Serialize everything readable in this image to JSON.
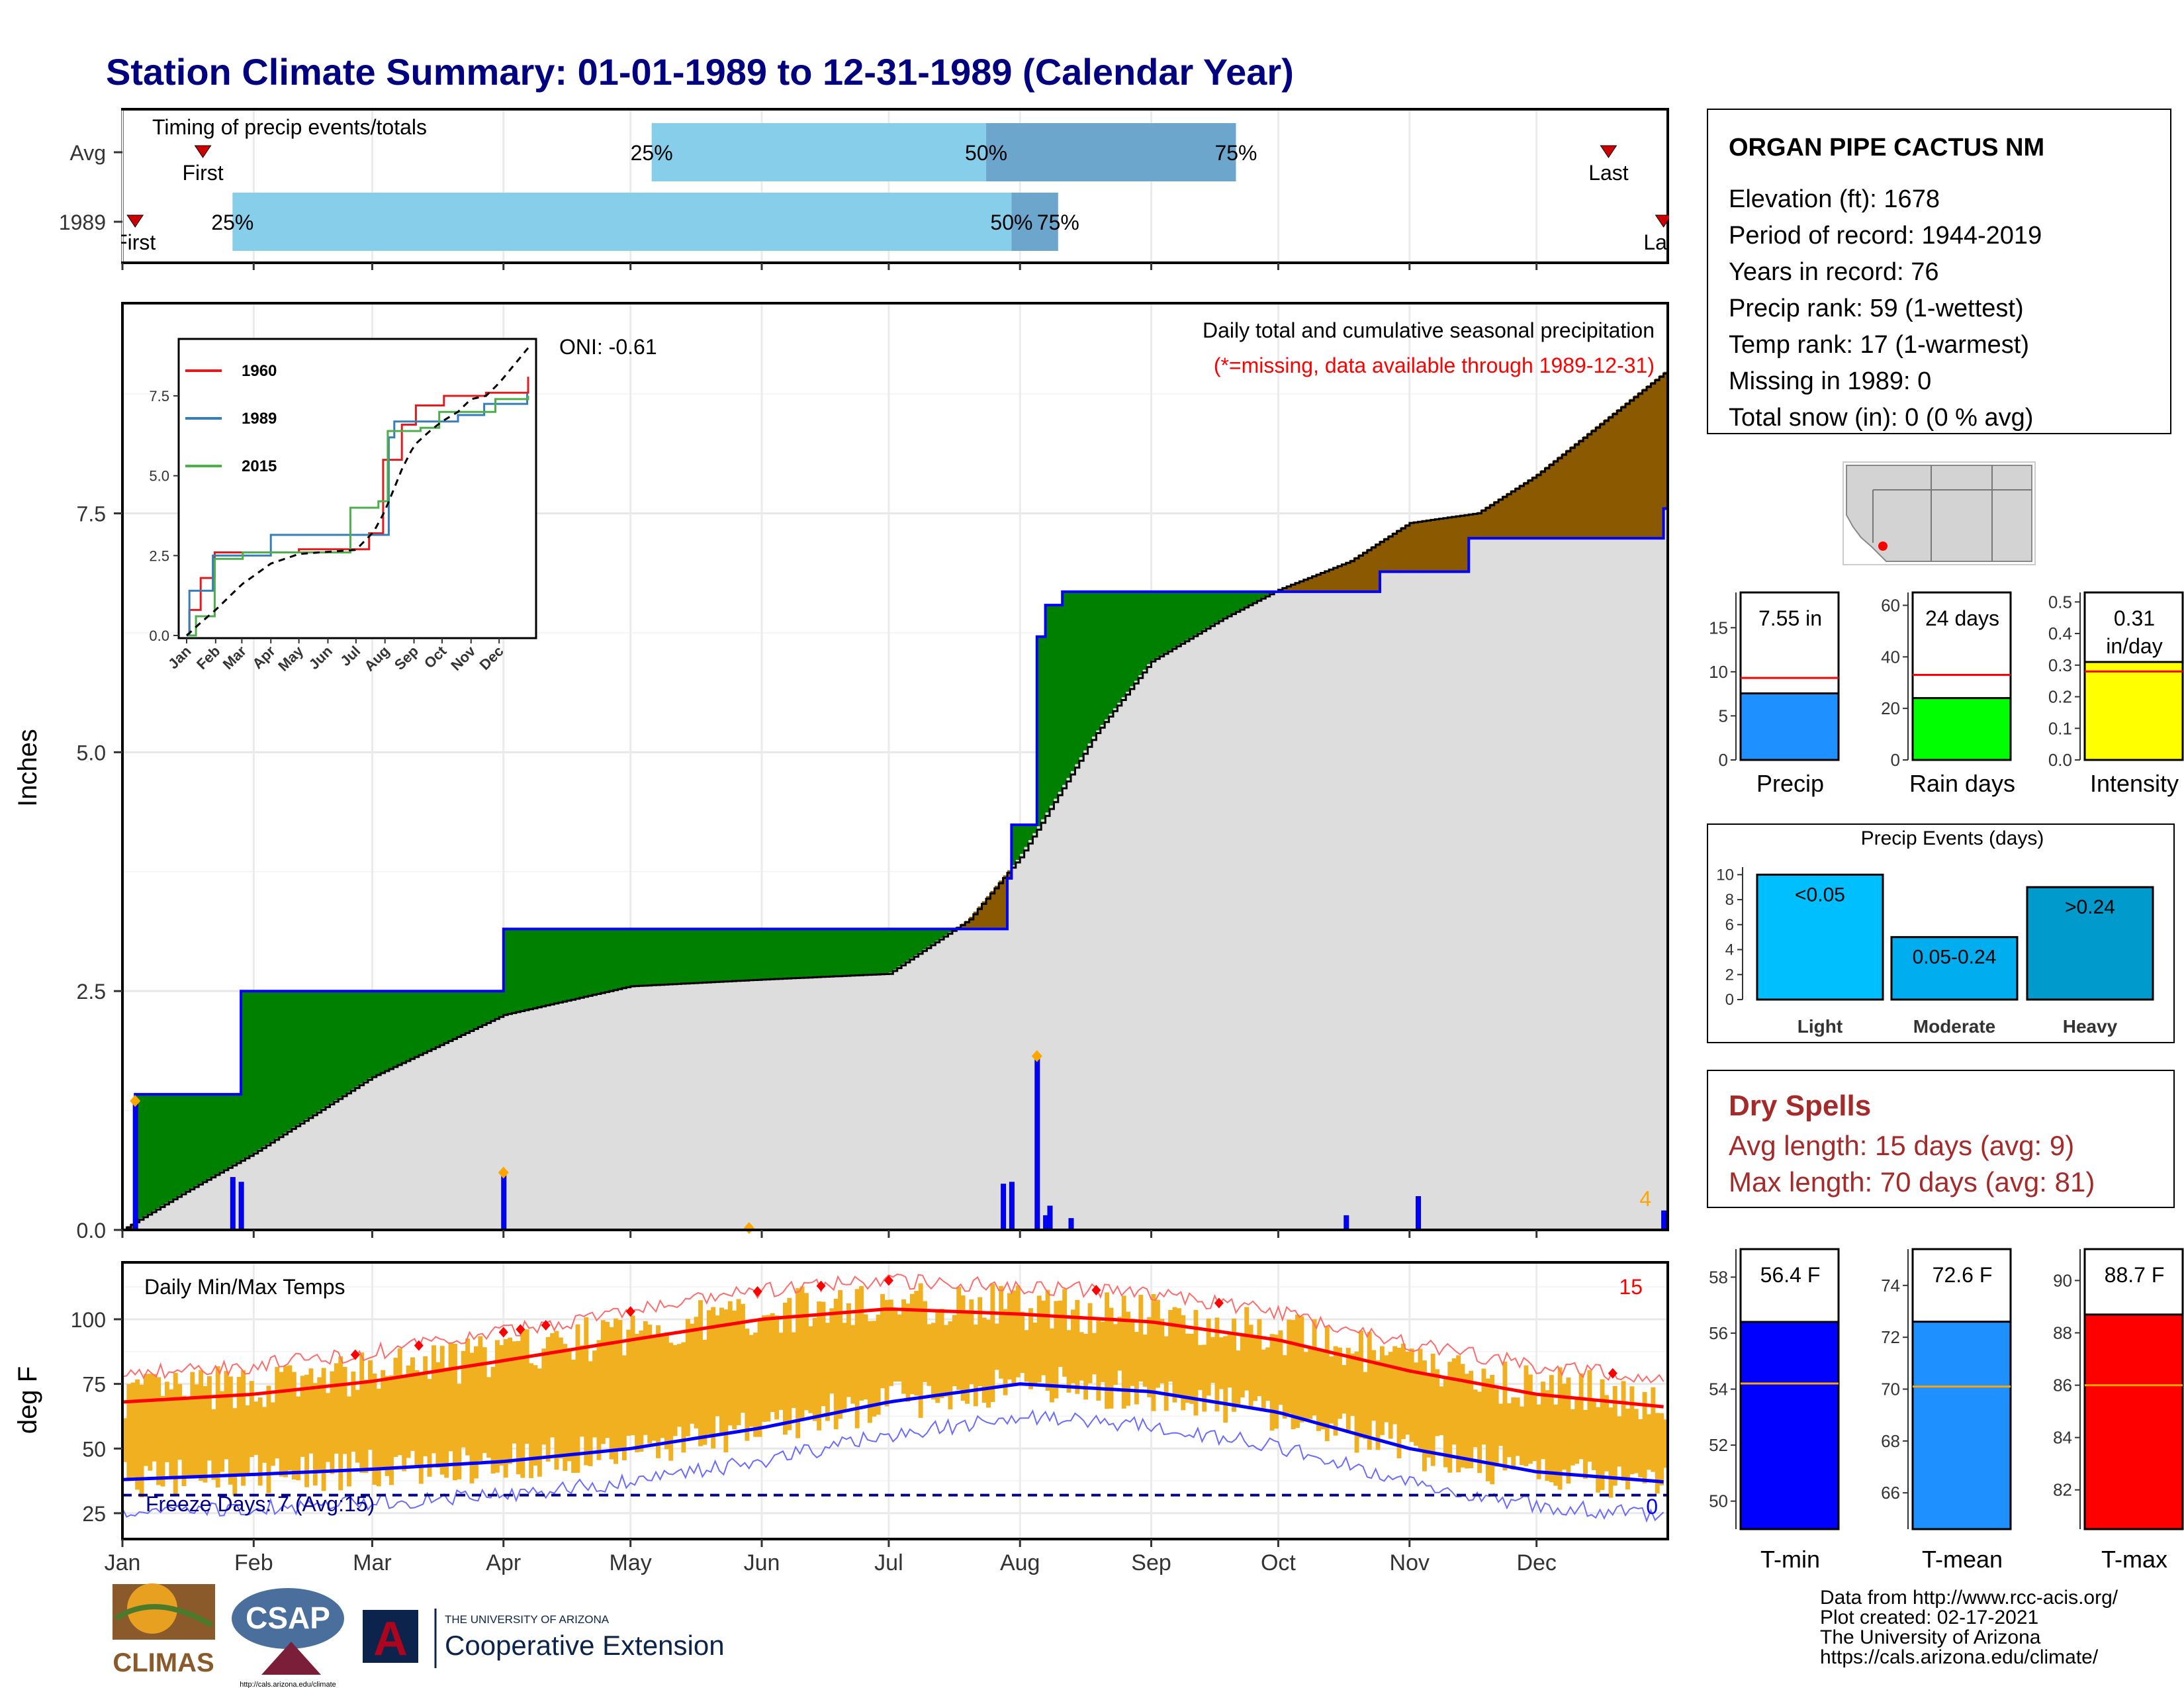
{
  "title": "Station Climate Summary: 01-01-1989 to 12-31-1989 (Calendar Year)",
  "months": [
    "Jan",
    "Feb",
    "Mar",
    "Apr",
    "May",
    "Jun",
    "Jul",
    "Aug",
    "Sep",
    "Oct",
    "Nov",
    "Dec"
  ],
  "timing": {
    "label": "Timing of precip events/totals",
    "rows": [
      {
        "name": "Avg",
        "first": "First",
        "last": "Last",
        "p25_label": "25%",
        "p50_label": "50%",
        "p75_label": "75%",
        "first_doy": 19,
        "p25_doy": 125,
        "p50_doy": 204,
        "p75_doy": 263,
        "last_doy": 351
      },
      {
        "name": "1989",
        "first": "First",
        "last": "Last",
        "p25_label": "25%",
        "p50_label": "50%",
        "p75_label": "75%",
        "first_doy": 3,
        "p25_doy": 26,
        "p50_doy": 210,
        "p75_doy": 221,
        "last_doy": 364
      }
    ],
    "colors": {
      "light": "#87CEEB",
      "dark": "#6CA6CD",
      "marker": "#CC0000"
    }
  },
  "precip_panel": {
    "ylabel": "Inches",
    "yticks": [
      "0.0",
      "2.5",
      "5.0",
      "7.5"
    ],
    "annotation1": "Daily total and cumulative seasonal precipitation",
    "annotation2": "(*=missing, data available through 1989-12-31)",
    "oni": "ONI: -0.61",
    "count_label": "4",
    "colors": {
      "above": "#008000",
      "below": "#8B5A00",
      "normal": "#DDDDDD",
      "line": "#0000FF",
      "avgline": "#000000"
    }
  },
  "inset": {
    "yticks": [
      "0.0",
      "2.5",
      "5.0",
      "7.5"
    ],
    "months": [
      "Jan",
      "Feb",
      "Mar",
      "Apr",
      "May",
      "Jun",
      "Jul",
      "Aug",
      "Sep",
      "Oct",
      "Nov",
      "Dec"
    ],
    "legend": [
      {
        "name": "1960",
        "color": "#E41A1C"
      },
      {
        "name": "1989",
        "color": "#377EB8"
      },
      {
        "name": "2015",
        "color": "#4DAF4A"
      }
    ]
  },
  "temp_panel": {
    "ylabel": "deg F",
    "label": "Daily Min/Max Temps",
    "yticks": [
      "25",
      "50",
      "75",
      "100"
    ],
    "freeze_label": "Freeze Days: 7 (Avg:15)",
    "hot_count": "15",
    "cold_count": "0"
  },
  "station": {
    "name": "ORGAN PIPE CACTUS NM",
    "lines": [
      "Elevation (ft): 1678",
      "Period of record: 1944-2019",
      "Years in record: 76",
      "Precip rank: 59 (1-wettest)",
      "Temp rank: 17 (1-warmest)",
      "Missing in 1989: 0",
      "Total snow (in): 0 (0 % avg)"
    ]
  },
  "mini_bars": [
    {
      "name": "Precip",
      "value_label": "7.55 in",
      "value": 7.55,
      "normal": 9.3,
      "ymax": 19,
      "ticks": [
        "0",
        "5",
        "10",
        "15"
      ],
      "tickvals": [
        0,
        5,
        10,
        15
      ],
      "color": "#1E90FF"
    },
    {
      "name": "Rain days",
      "value_label": "24 days",
      "value": 24,
      "normal": 33,
      "ymax": 65,
      "ticks": [
        "0",
        "20",
        "40",
        "60"
      ],
      "tickvals": [
        0,
        20,
        40,
        60
      ],
      "color": "#00FF00"
    },
    {
      "name": "Intensity",
      "value_label_1": "0.31",
      "value_label_2": "in/day",
      "value": 0.31,
      "normal": 0.28,
      "ymax": 0.53,
      "ticks": [
        "0.0",
        "0.1",
        "0.2",
        "0.3",
        "0.4",
        "0.5"
      ],
      "tickvals": [
        0,
        0.1,
        0.2,
        0.3,
        0.4,
        0.5
      ],
      "color": "#FFFF00"
    }
  ],
  "events": {
    "title": "Precip Events (days)",
    "ticks": [
      "0",
      "2",
      "4",
      "6",
      "8",
      "10"
    ],
    "bars": [
      {
        "name": "Light",
        "label": "<0.05",
        "value": 10,
        "color": "#00BFFF"
      },
      {
        "name": "Moderate",
        "label": "0.05-0.24",
        "value": 5,
        "color": "#00AEEF"
      },
      {
        "name": "Heavy",
        "label": ">0.24",
        "value": 9,
        "color": "#009ACD"
      }
    ]
  },
  "dry_spells": {
    "title": "Dry Spells",
    "line1": "Avg length: 15 days (avg: 9)",
    "line2": "Max length: 70 days (avg: 81)"
  },
  "temp_bars": [
    {
      "name": "T-min",
      "value_label": "56.4 F",
      "value": 56.4,
      "normal": 54.2,
      "ymin": 49,
      "ymax": 59,
      "ticks": [
        "50",
        "52",
        "54",
        "56",
        "58"
      ],
      "tickvals": [
        50,
        52,
        54,
        56,
        58
      ],
      "color": "#0000FF"
    },
    {
      "name": "T-mean",
      "value_label": "72.6 F",
      "value": 72.6,
      "normal": 70.1,
      "ymin": 64.6,
      "ymax": 75.4,
      "ticks": [
        "66",
        "68",
        "70",
        "72",
        "74"
      ],
      "tickvals": [
        66,
        68,
        70,
        72,
        74
      ],
      "color": "#1E90FF"
    },
    {
      "name": "T-max",
      "value_label": "88.7 F",
      "value": 88.7,
      "normal": 86.0,
      "ymin": 80.5,
      "ymax": 91.2,
      "ticks": [
        "82",
        "84",
        "86",
        "88",
        "90"
      ],
      "tickvals": [
        82,
        84,
        86,
        88,
        90
      ],
      "color": "#FF0000"
    }
  ],
  "footer": {
    "lines": [
      "Data from http://www.rcc-acis.org/",
      "Plot created: 02-17-2021",
      "The University of Arizona",
      "https://cals.arizona.edu/climate/"
    ],
    "logo_climas": "CLIMAS",
    "logo_csap": "CSAP",
    "logo_csap_url": "http://cals.arizona.edu/climate",
    "ua_line1": "THE UNIVERSITY OF ARIZONA",
    "ua_line2": "Cooperative Extension"
  },
  "chart_data": [
    {
      "type": "area",
      "title": "Daily total and cumulative seasonal precipitation",
      "ylabel": "Inches",
      "ylim": [
        0,
        9.7
      ],
      "cumulative_1989_steps": [
        [
          0,
          0
        ],
        [
          3,
          1.42
        ],
        [
          26,
          1.42
        ],
        [
          28,
          2.5
        ],
        [
          90,
          2.5
        ],
        [
          90,
          3.15
        ],
        [
          208,
          3.15
        ],
        [
          209,
          3.68
        ],
        [
          210,
          4.24
        ],
        [
          215,
          4.24
        ],
        [
          216,
          6.21
        ],
        [
          218,
          6.54
        ],
        [
          221,
          6.54
        ],
        [
          222,
          6.68
        ],
        [
          290,
          6.68
        ],
        [
          297,
          6.89
        ],
        [
          316,
          6.89
        ],
        [
          318,
          7.24
        ],
        [
          362,
          7.24
        ],
        [
          364,
          7.55
        ]
      ],
      "cumulative_avg": [
        [
          0,
          0
        ],
        [
          15,
          0.4
        ],
        [
          31,
          0.8
        ],
        [
          59,
          1.6
        ],
        [
          90,
          2.25
        ],
        [
          120,
          2.55
        ],
        [
          151,
          2.62
        ],
        [
          181,
          2.68
        ],
        [
          200,
          3.25
        ],
        [
          212,
          3.9
        ],
        [
          230,
          5.2
        ],
        [
          243,
          5.95
        ],
        [
          260,
          6.4
        ],
        [
          273,
          6.7
        ],
        [
          290,
          7.0
        ],
        [
          304,
          7.4
        ],
        [
          320,
          7.5
        ],
        [
          334,
          7.9
        ],
        [
          365,
          9.0
        ]
      ],
      "daily_1989": [
        {
          "doy": 3,
          "in": 1.35
        },
        {
          "doy": 26,
          "in": 0.55
        },
        {
          "doy": 28,
          "in": 0.5
        },
        {
          "doy": 90,
          "in": 0.6
        },
        {
          "doy": 148,
          "in": 0.02
        },
        {
          "doy": 208,
          "in": 0.48
        },
        {
          "doy": 210,
          "in": 0.5
        },
        {
          "doy": 216,
          "in": 1.82
        },
        {
          "doy": 218,
          "in": 0.15
        },
        {
          "doy": 219,
          "in": 0.25
        },
        {
          "doy": 224,
          "in": 0.12
        },
        {
          "doy": 289,
          "in": 0.15
        },
        {
          "doy": 306,
          "in": 0.35
        },
        {
          "doy": 364,
          "in": 0.2
        }
      ]
    },
    {
      "type": "line",
      "title": "Daily Min/Max Temps",
      "ylabel": "deg F",
      "ylim": [
        15,
        122
      ],
      "normal_max": [
        [
          0,
          68
        ],
        [
          31,
          71
        ],
        [
          59,
          76
        ],
        [
          90,
          84
        ],
        [
          120,
          92
        ],
        [
          151,
          100
        ],
        [
          181,
          104
        ],
        [
          212,
          102
        ],
        [
          243,
          99
        ],
        [
          273,
          92
        ],
        [
          304,
          80
        ],
        [
          334,
          71
        ],
        [
          365,
          66
        ]
      ],
      "normal_min": [
        [
          0,
          38
        ],
        [
          31,
          40
        ],
        [
          59,
          42
        ],
        [
          90,
          45
        ],
        [
          120,
          50
        ],
        [
          151,
          58
        ],
        [
          181,
          68
        ],
        [
          212,
          75
        ],
        [
          243,
          72
        ],
        [
          273,
          64
        ],
        [
          304,
          50
        ],
        [
          334,
          41
        ],
        [
          365,
          37
        ]
      ],
      "freeze_line": 32
    }
  ]
}
